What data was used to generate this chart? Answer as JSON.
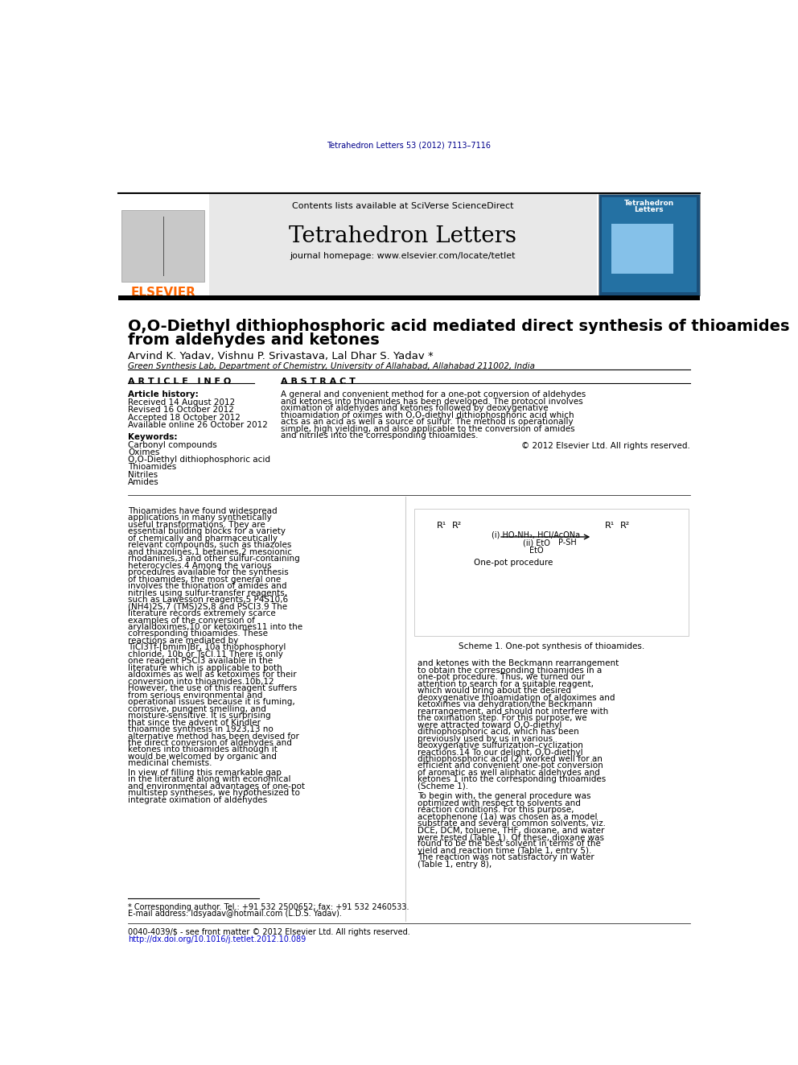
{
  "bg_color": "#ffffff",
  "header_citation": "Tetrahedron Letters 53 (2012) 7113–7116",
  "header_citation_color": "#00008B",
  "journal_name": "Tetrahedron Letters",
  "journal_homepage": "journal homepage: www.elsevier.com/locate/tetlet",
  "contents_line": "Contents lists available at SciVerse ScienceDirect",
  "elsevier_color": "#FF6600",
  "article_title_line1": "O,O-Diethyl dithiophosphoric acid mediated direct synthesis of thioamides",
  "article_title_line2": "from aldehydes and ketones",
  "authors": "Arvind K. Yadav, Vishnu P. Srivastava, Lal Dhar S. Yadav *",
  "affiliation": "Green Synthesis Lab, Department of Chemistry, University of Allahabad, Allahabad 211002, India",
  "article_info_header": "A R T I C L E   I N F O",
  "abstract_header": "A B S T R A C T",
  "article_history_label": "Article history:",
  "received": "Received 14 August 2012",
  "revised": "Revised 16 October 2012",
  "accepted": "Accepted 18 October 2012",
  "available": "Available online 26 October 2012",
  "keywords_label": "Keywords:",
  "keywords": [
    "Carbonyl compounds",
    "Oximes",
    "O,O-Diethyl dithiophosphoric acid",
    "Thioamides",
    "Nitriles",
    "Amides"
  ],
  "abstract_text": "A general and convenient method for a one-pot conversion of aldehydes and ketones into thioamides has been developed. The protocol involves oximation of aldehydes and ketones followed by deoxygenative thioamidation of oximes with O,O-diethyl dithiophosphoric acid which acts as an acid as well a source of sulfur. The method is operationally simple, high yielding, and also applicable to the conversion of amides and nitriles into the corresponding thioamides.",
  "copyright": "© 2012 Elsevier Ltd. All rights reserved.",
  "intro_text": "Thioamides have found widespread applications in many synthetically useful transformations. They are essential building blocks for a variety of chemically and pharmaceutically relevant compounds, such as thiazoles and thiazolines,1 betaines,2 mesoionic rhodanines,3 and other sulfur-containing heterocycles.4 Among the various procedures available for the synthesis of thioamides, the most general one involves the thionation of amides and nitriles using sulfur-transfer reagents, such as Lawesson reagents,5 P4S10,6 (NH4)2S,7 (TMS)2S,8 and PSCl3.9 The literature records extremely scarce examples of the conversion of arylaldoximes,10 or ketoximes11 into the corresponding thioamides. These reactions are mediated by TiCl3Tf-[bmim]Br, 10a thiophosphoryl chloride, 10b or TsCl.11 There is only one reagent PSCl3 available in the literature which is applicable to both aldoximes as well as ketoximes for their conversion into thioamides.10b,12 However, the use of this reagent suffers from serious environmental and operational issues because it is fuming, corrosive, pungent smelling, and moisture-sensitive. It is surprising that since the advent of Kindler thioamide synthesis in 1923,13 no alternative method has been devised for the direct conversion of aldehydes and ketones into thioamides although it would be welcomed by organic and medicinal chemists.",
  "intro_text2": "In view of filling this remarkable gap in the literature along with economical and environmental advantages of one-pot multistep syntheses, we hypothesized to integrate oximation of aldehydes",
  "right_col_text": "and ketones with the Beckmann rearrangement to obtain the corresponding thioamides in a one-pot procedure. Thus, we turned our attention to search for a suitable reagent, which would bring about the desired deoxygenative thioamidation of aldoximes and ketoximes via dehydration/the Beckmann rearrangement, and should not interfere with the oximation step. For this purpose, we were attracted toward O,O-diethyl dithiophosphoric acid, which has been previously used by us in various deoxygenative sulfurization–cyclization reactions.14 To our delight, O,O-diethyl dithiophosphoric acid (2) worked well for an efficient and convenient one-pot conversion of aromatic as well aliphatic aldehydes and ketones 1 into the corresponding thioamides (Scheme 1).",
  "right_col_text2": "To begin with, the general procedure was optimized with respect to solvents and reaction conditions. For this purpose, acetophenone (1a) was chosen as a model substrate and several common solvents, viz. DCE, DCM, toluene, THF, dioxane, and water were tested (Table 1). Of these, dioxane was found to be the best solvent in terms of the yield and reaction time (Table 1, entry 5). The reaction was not satisfactory in water (Table 1, entry 8),",
  "scheme_caption": "Scheme 1. One-pot synthesis of thioamides.",
  "footnote1": "* Corresponding author. Tel.: +91 532 2500652; fax: +91 532 2460533.",
  "footnote2": "E-mail address: ldsyadav@hotmail.com (L.D.S. Yadav).",
  "footer1": "0040-4039/$ - see front matter © 2012 Elsevier Ltd. All rights reserved.",
  "footer2": "http://dx.doi.org/10.1016/j.tetlet.2012.10.089"
}
